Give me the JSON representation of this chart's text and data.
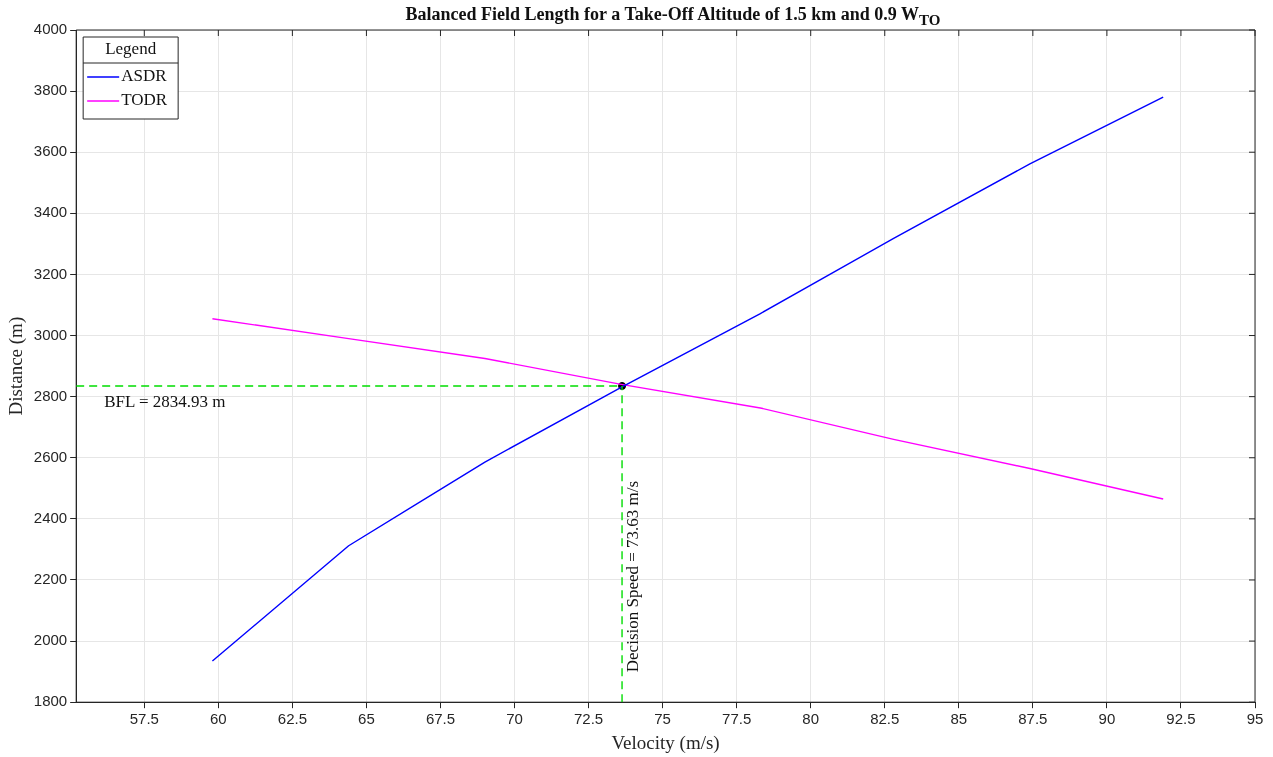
{
  "chart_data": {
    "type": "line",
    "title": "Balanced Field Length for a Take-Off Altitude of 1.5 km and 0.9 W$_{TO}$",
    "xlabel": "Velocity (m/s)",
    "ylabel": "Distance (m)",
    "legend_title": "Legend",
    "x": [
      59.8,
      64.4,
      69.0,
      73.6,
      78.3,
      82.8,
      87.4,
      91.9
    ],
    "series": [
      {
        "name": "ASDR",
        "color": "#0000ff",
        "values": [
          1935,
          2312,
          2586,
          2830,
          3072,
          3318,
          3562,
          3780
        ]
      },
      {
        "name": "TODR",
        "color": "#ff00ff",
        "values": [
          3055,
          2990,
          2925,
          2840,
          2763,
          2660,
          2565,
          2465
        ]
      },
      {
        "type": "scatter",
        "color": "#000000",
        "marker": "circle",
        "x": [
          73.63
        ],
        "values": [
          2834.93
        ]
      }
    ],
    "ref_lines": [
      {
        "axis": "y",
        "value": 2834.93,
        "label": "BFL = 2834.93 m",
        "color": "#00dd00",
        "line_style": "dashed"
      },
      {
        "axis": "x",
        "value": 73.63,
        "label": "Decision Speed = 73.63 m/s",
        "color": "#00dd00",
        "line_style": "dashed"
      }
    ],
    "xlim": [
      55.2,
      95
    ],
    "xticks": [
      57.5,
      60,
      62.5,
      65,
      67.5,
      70,
      72.5,
      75,
      77.5,
      80,
      82.5,
      85,
      87.5,
      90,
      92.5,
      95
    ],
    "ylim": [
      1800,
      4000
    ],
    "yticks": [
      1800,
      2000,
      2200,
      2400,
      2600,
      2800,
      3000,
      3200,
      3400,
      3600,
      3800,
      4000
    ],
    "grid": true,
    "legend": "top left",
    "marker": "none",
    "line_style": "solid"
  }
}
